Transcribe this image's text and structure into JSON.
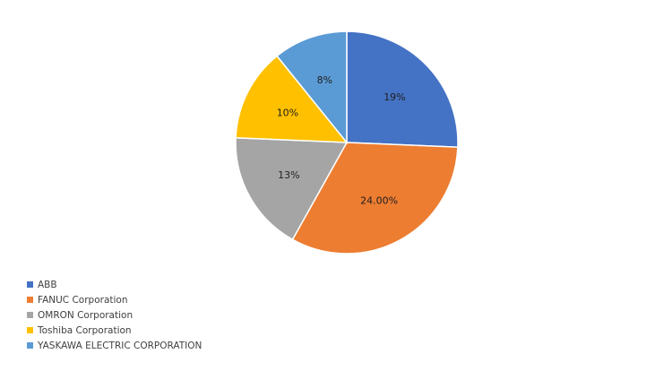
{
  "chart_data": {
    "type": "pie",
    "title": "",
    "categories": [
      "ABB",
      "FANUC Corporation",
      "OMRON Corporation",
      "Toshiba Corporation",
      "YASKAWA ELECTRIC CORPORATION"
    ],
    "values": [
      19,
      24.0,
      13,
      10,
      8
    ],
    "data_labels": [
      "19%",
      "24.00%",
      "13%",
      "10%",
      "8%"
    ],
    "colors": [
      "#4472C4",
      "#ED7D31",
      "#A5A5A5",
      "#FFC000",
      "#5B9BD5"
    ],
    "start_angle_deg": 0,
    "direction": "clockwise",
    "legend_position": "bottom-left",
    "legend": [
      "ABB",
      "FANUC Corporation",
      "OMRON Corporation",
      "Toshiba Corporation",
      "YASKAWA ELECTRIC CORPORATION"
    ]
  }
}
